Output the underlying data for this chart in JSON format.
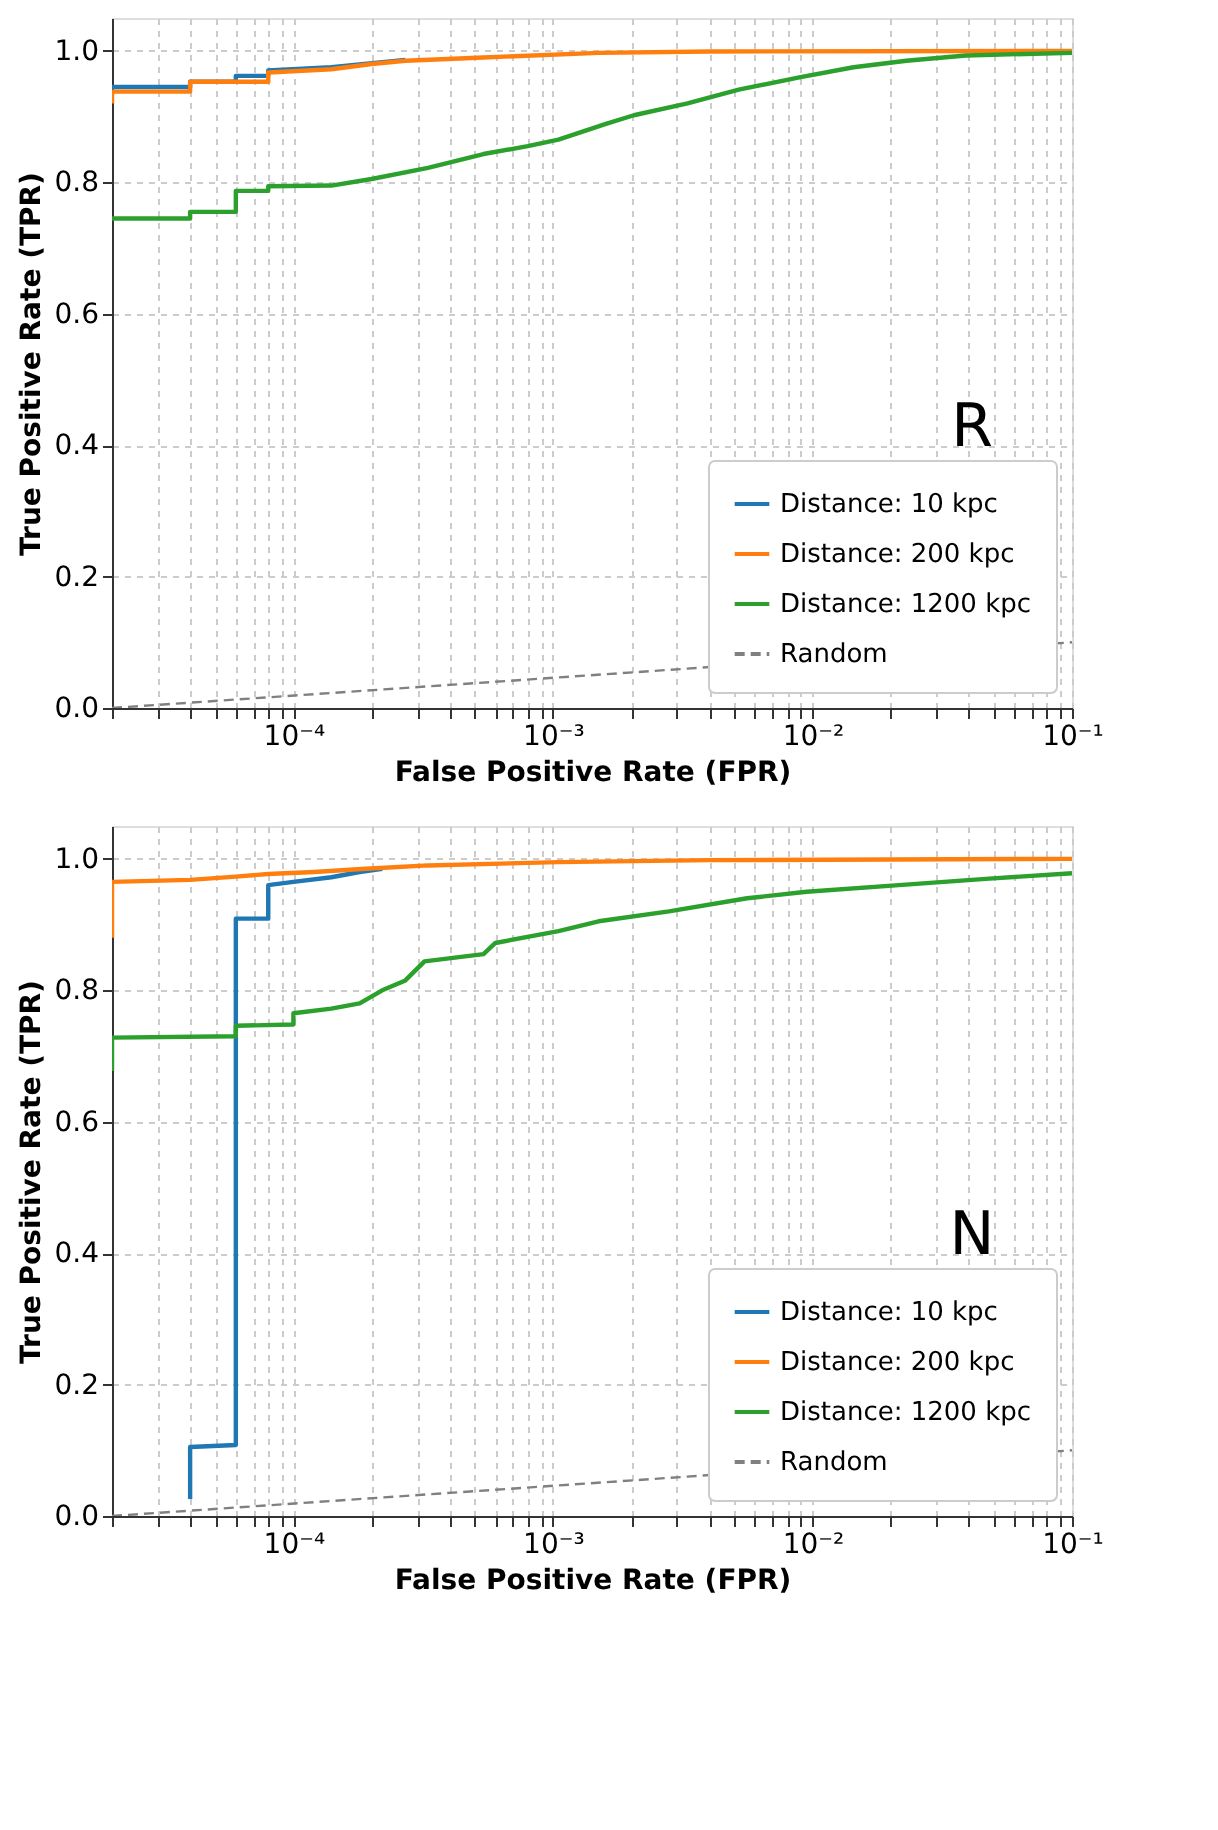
{
  "chart_data": [
    {
      "type": "line",
      "xlabel": "False Positive Rate (FPR)",
      "ylabel": "True Positive Rate (TPR)",
      "log": "x",
      "xlim": [
        2e-05,
        0.1
      ],
      "ylim": [
        0,
        1.05
      ],
      "xticks": [
        {
          "value": 2e-05,
          "label": null
        },
        {
          "value": 3e-05,
          "label": null
        },
        {
          "value": 4e-05,
          "label": null
        },
        {
          "value": 5e-05,
          "label": null
        },
        {
          "value": 6e-05,
          "label": null
        },
        {
          "value": 7e-05,
          "label": null
        },
        {
          "value": 8e-05,
          "label": null
        },
        {
          "value": 9e-05,
          "label": null
        },
        {
          "value": 0.0001,
          "label": "10⁻⁴"
        },
        {
          "value": 0.0002,
          "label": null
        },
        {
          "value": 0.0003,
          "label": null
        },
        {
          "value": 0.0004,
          "label": null
        },
        {
          "value": 0.0005,
          "label": null
        },
        {
          "value": 0.0006,
          "label": null
        },
        {
          "value": 0.0007,
          "label": null
        },
        {
          "value": 0.0008,
          "label": null
        },
        {
          "value": 0.0009,
          "label": null
        },
        {
          "value": 0.001,
          "label": "10⁻³"
        },
        {
          "value": 0.002,
          "label": null
        },
        {
          "value": 0.003,
          "label": null
        },
        {
          "value": 0.004,
          "label": null
        },
        {
          "value": 0.005,
          "label": null
        },
        {
          "value": 0.006,
          "label": null
        },
        {
          "value": 0.007,
          "label": null
        },
        {
          "value": 0.008,
          "label": null
        },
        {
          "value": 0.009,
          "label": null
        },
        {
          "value": 0.01,
          "label": "10⁻²"
        },
        {
          "value": 0.02,
          "label": null
        },
        {
          "value": 0.03,
          "label": null
        },
        {
          "value": 0.04,
          "label": null
        },
        {
          "value": 0.05,
          "label": null
        },
        {
          "value": 0.06,
          "label": null
        },
        {
          "value": 0.07,
          "label": null
        },
        {
          "value": 0.08,
          "label": null
        },
        {
          "value": 0.09,
          "label": null
        },
        {
          "value": 0.1,
          "label": "10⁻¹"
        }
      ],
      "yticks": [
        {
          "value": 0,
          "label": "0.0"
        },
        {
          "value": 0.2,
          "label": "0.2"
        },
        {
          "value": 0.4,
          "label": "0.4"
        },
        {
          "value": 0.6,
          "label": "0.6"
        },
        {
          "value": 0.8,
          "label": "0.8"
        },
        {
          "value": 1.0,
          "label": "1.0"
        }
      ],
      "grid": true,
      "legend": "bottom right",
      "annotations": [
        "R"
      ],
      "series": [
        {
          "name": "Distance: 10 kpc",
          "color": "#1f77b4",
          "x": [
            2e-05,
            4e-05,
            4e-05,
            6e-05,
            6e-05,
            8e-05,
            8e-05,
            0.00014,
            0.00027
          ],
          "values": [
            0.945,
            0.945,
            0.953,
            0.953,
            0.962,
            0.962,
            0.97,
            0.975,
            0.986
          ]
        },
        {
          "name": "Distance: 200 kpc",
          "color": "#ff7f0e",
          "x": [
            2e-05,
            2e-05,
            4e-05,
            4e-05,
            8e-05,
            8e-05,
            0.00014,
            0.0002,
            0.00027,
            0.00054,
            0.0015,
            0.004,
            0.1
          ],
          "values": [
            0.92,
            0.938,
            0.938,
            0.953,
            0.953,
            0.967,
            0.972,
            0.98,
            0.985,
            0.99,
            0.997,
            0.999,
            1.0
          ]
        },
        {
          "name": "Distance: 1200 kpc",
          "color": "#2ca02c",
          "x": [
            2e-05,
            4e-05,
            4e-05,
            6e-05,
            6e-05,
            8e-05,
            8e-05,
            0.00014,
            0.0002,
            0.00033,
            0.00054,
            0.0008,
            0.00105,
            0.0016,
            0.00205,
            0.0033,
            0.0052,
            0.009,
            0.0144,
            0.023,
            0.039,
            0.1
          ],
          "values": [
            0.745,
            0.745,
            0.755,
            0.755,
            0.787,
            0.787,
            0.794,
            0.795,
            0.805,
            0.822,
            0.843,
            0.855,
            0.865,
            0.889,
            0.902,
            0.92,
            0.941,
            0.96,
            0.975,
            0.985,
            0.993,
            0.997
          ]
        },
        {
          "name": "Random",
          "color": "#808080",
          "line_style": "dashed",
          "x": [
            2e-05,
            0.1
          ],
          "values": [
            0,
            0.1
          ]
        }
      ]
    },
    {
      "type": "line",
      "xlabel": "False Positive Rate (FPR)",
      "ylabel": "True Positive Rate (TPR)",
      "log": "x",
      "xlim": [
        2e-05,
        0.1
      ],
      "ylim": [
        0,
        1.05
      ],
      "xticks": [
        {
          "value": 2e-05,
          "label": null
        },
        {
          "value": 3e-05,
          "label": null
        },
        {
          "value": 4e-05,
          "label": null
        },
        {
          "value": 5e-05,
          "label": null
        },
        {
          "value": 6e-05,
          "label": null
        },
        {
          "value": 7e-05,
          "label": null
        },
        {
          "value": 8e-05,
          "label": null
        },
        {
          "value": 9e-05,
          "label": null
        },
        {
          "value": 0.0001,
          "label": "10⁻⁴"
        },
        {
          "value": 0.0002,
          "label": null
        },
        {
          "value": 0.0003,
          "label": null
        },
        {
          "value": 0.0004,
          "label": null
        },
        {
          "value": 0.0005,
          "label": null
        },
        {
          "value": 0.0006,
          "label": null
        },
        {
          "value": 0.0007,
          "label": null
        },
        {
          "value": 0.0008,
          "label": null
        },
        {
          "value": 0.0009,
          "label": null
        },
        {
          "value": 0.001,
          "label": "10⁻³"
        },
        {
          "value": 0.002,
          "label": null
        },
        {
          "value": 0.003,
          "label": null
        },
        {
          "value": 0.004,
          "label": null
        },
        {
          "value": 0.005,
          "label": null
        },
        {
          "value": 0.006,
          "label": null
        },
        {
          "value": 0.007,
          "label": null
        },
        {
          "value": 0.008,
          "label": null
        },
        {
          "value": 0.009,
          "label": null
        },
        {
          "value": 0.01,
          "label": "10⁻²"
        },
        {
          "value": 0.02,
          "label": null
        },
        {
          "value": 0.03,
          "label": null
        },
        {
          "value": 0.04,
          "label": null
        },
        {
          "value": 0.05,
          "label": null
        },
        {
          "value": 0.06,
          "label": null
        },
        {
          "value": 0.07,
          "label": null
        },
        {
          "value": 0.08,
          "label": null
        },
        {
          "value": 0.09,
          "label": null
        },
        {
          "value": 0.1,
          "label": "10⁻¹"
        }
      ],
      "yticks": [
        {
          "value": 0,
          "label": "0.0"
        },
        {
          "value": 0.2,
          "label": "0.2"
        },
        {
          "value": 0.4,
          "label": "0.4"
        },
        {
          "value": 0.6,
          "label": "0.6"
        },
        {
          "value": 0.8,
          "label": "0.8"
        },
        {
          "value": 1.0,
          "label": "1.0"
        }
      ],
      "grid": true,
      "legend": "bottom right",
      "annotations": [
        "N"
      ],
      "series": [
        {
          "name": "Distance: 10 kpc",
          "color": "#1f77b4",
          "x": [
            4e-05,
            4e-05,
            6e-05,
            6e-05,
            8e-05,
            8e-05,
            0.0001,
            0.00014,
            0.00018,
            0.00022
          ],
          "values": [
            0.026,
            0.105,
            0.108,
            0.909,
            0.909,
            0.96,
            0.965,
            0.972,
            0.98,
            0.985
          ]
        },
        {
          "name": "Distance: 200 kpc",
          "color": "#ff7f0e",
          "x": [
            2e-05,
            2e-05,
            4e-05,
            6e-05,
            8e-05,
            0.00012,
            0.00019,
            0.00033,
            0.00105,
            0.004,
            0.1
          ],
          "values": [
            0.88,
            0.965,
            0.968,
            0.973,
            0.977,
            0.98,
            0.985,
            0.99,
            0.995,
            0.998,
            1.0
          ]
        },
        {
          "name": "Distance: 1200 kpc",
          "color": "#2ca02c",
          "x": [
            2e-05,
            2e-05,
            6e-05,
            6e-05,
            0.0001,
            0.0001,
            0.00014,
            0.00018,
            0.00022,
            0.00027,
            0.00032,
            0.00054,
            0.0006,
            0.00105,
            0.0015,
            0.0028,
            0.0056,
            0.0095,
            0.0215,
            0.048,
            0.1
          ],
          "values": [
            0.677,
            0.728,
            0.73,
            0.746,
            0.748,
            0.765,
            0.772,
            0.78,
            0.8,
            0.815,
            0.844,
            0.855,
            0.872,
            0.89,
            0.905,
            0.92,
            0.94,
            0.95,
            0.96,
            0.97,
            0.978
          ]
        },
        {
          "name": "Random",
          "color": "#808080",
          "line_style": "dashed",
          "x": [
            2e-05,
            0.1
          ],
          "values": [
            0,
            0.1
          ]
        }
      ]
    }
  ]
}
